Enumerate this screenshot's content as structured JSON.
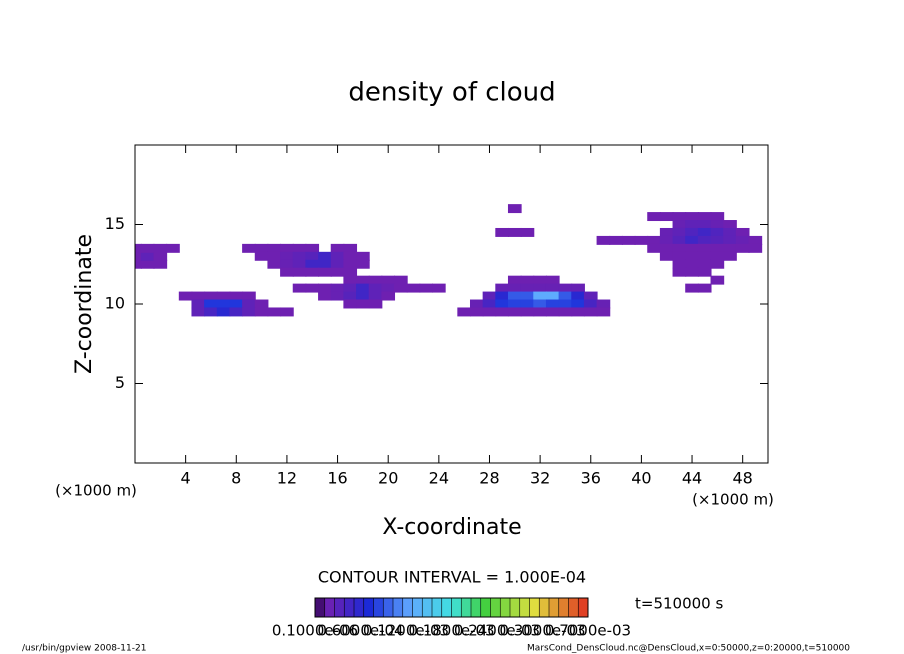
{
  "chart_data": {
    "type": "heatmap",
    "title": "density of cloud",
    "x_label": "X-coordinate",
    "y_label": "Z-coordinate",
    "x_unit": "(×1000 m)",
    "y_unit": "(×1000 m)",
    "xlim": [
      0,
      50
    ],
    "ylim": [
      0,
      20
    ],
    "xticks": [
      4,
      8,
      12,
      16,
      20,
      24,
      28,
      32,
      36,
      40,
      44,
      48
    ],
    "yticks": [
      5,
      10,
      15
    ],
    "clim": [
      0,
      0.0007
    ],
    "contour_interval": "CONTOUR INTERVAL = 1.000E-04",
    "time_label": "t=510000 s",
    "colorbar_labels": [
      "0.1000e-06",
      "0.6000e-04",
      "0.1200e-03",
      "0.1800e-03",
      "0.2400e-03",
      "0.3000e-03",
      "0.7000e-03"
    ],
    "footer_left": "/usr/bin/gpview  2008-11-21",
    "footer_right": "MarsCond_DensCloud.nc@DensCloud,x=0:50000,z=0:20000,t=510000",
    "cells": [
      [
        0,
        12.5,
        3e-05
      ],
      [
        1,
        12.5,
        3e-05
      ],
      [
        2,
        12.5,
        3e-05
      ],
      [
        0,
        13,
        3e-05
      ],
      [
        1,
        13,
        5e-05
      ],
      [
        2,
        13,
        3e-05
      ],
      [
        0,
        13.5,
        3e-05
      ],
      [
        1,
        13.5,
        3e-05
      ],
      [
        2,
        13.5,
        3e-05
      ],
      [
        3,
        13.5,
        3e-05
      ],
      [
        4,
        10.5,
        3e-05
      ],
      [
        5,
        10.5,
        3e-05
      ],
      [
        6,
        10.5,
        3e-05
      ],
      [
        7,
        10.5,
        3e-05
      ],
      [
        8,
        10.5,
        3e-05
      ],
      [
        9,
        10.5,
        3e-05
      ],
      [
        5,
        10,
        5e-05
      ],
      [
        6,
        10,
        0.00015
      ],
      [
        7,
        10,
        0.00015
      ],
      [
        8,
        10,
        0.00015
      ],
      [
        9,
        10,
        5e-05
      ],
      [
        10,
        10,
        3e-05
      ],
      [
        5,
        9.5,
        5e-05
      ],
      [
        6,
        9.5,
        8e-05
      ],
      [
        7,
        9.5,
        0.00012
      ],
      [
        8,
        9.5,
        8e-05
      ],
      [
        9,
        9.5,
        5e-05
      ],
      [
        10,
        9.5,
        3e-05
      ],
      [
        11,
        9.5,
        3e-05
      ],
      [
        12,
        9.5,
        3e-05
      ],
      [
        9,
        13.5,
        3e-05
      ],
      [
        10,
        13.5,
        3e-05
      ],
      [
        11,
        13.5,
        3e-05
      ],
      [
        12,
        13.5,
        3e-05
      ],
      [
        13,
        13.5,
        3e-05
      ],
      [
        14,
        13.5,
        3e-05
      ],
      [
        16,
        13.5,
        3e-05
      ],
      [
        17,
        13.5,
        3e-05
      ],
      [
        10,
        13,
        3e-05
      ],
      [
        11,
        13,
        3e-05
      ],
      [
        12,
        13,
        4e-05
      ],
      [
        13,
        13,
        5e-05
      ],
      [
        14,
        13,
        6e-05
      ],
      [
        15,
        13,
        9e-05
      ],
      [
        16,
        13,
        5e-05
      ],
      [
        17,
        13,
        3e-05
      ],
      [
        18,
        13,
        3e-05
      ],
      [
        11,
        12.5,
        3e-05
      ],
      [
        12,
        12.5,
        4e-05
      ],
      [
        13,
        12.5,
        5e-05
      ],
      [
        14,
        12.5,
        9e-05
      ],
      [
        15,
        12.5,
        9e-05
      ],
      [
        16,
        12.5,
        5e-05
      ],
      [
        17,
        12.5,
        3e-05
      ],
      [
        18,
        12.5,
        3e-05
      ],
      [
        12,
        12,
        3e-05
      ],
      [
        13,
        12,
        3e-05
      ],
      [
        14,
        12,
        3e-05
      ],
      [
        15,
        12,
        3e-05
      ],
      [
        16,
        12,
        3e-05
      ],
      [
        17,
        12,
        3e-05
      ],
      [
        17,
        11.5,
        3e-05
      ],
      [
        18,
        11.5,
        3e-05
      ],
      [
        19,
        11.5,
        3e-05
      ],
      [
        20,
        11.5,
        3e-05
      ],
      [
        21,
        11.5,
        3e-05
      ],
      [
        13,
        11,
        3e-05
      ],
      [
        14,
        11,
        3e-05
      ],
      [
        15,
        11,
        3e-05
      ],
      [
        16,
        11,
        4e-05
      ],
      [
        17,
        11,
        5e-05
      ],
      [
        18,
        11,
        9e-05
      ],
      [
        19,
        11,
        5e-05
      ],
      [
        20,
        11,
        4e-05
      ],
      [
        21,
        11,
        3e-05
      ],
      [
        22,
        11,
        3e-05
      ],
      [
        23,
        11,
        3e-05
      ],
      [
        24,
        11,
        3e-05
      ],
      [
        15,
        10.5,
        3e-05
      ],
      [
        16,
        10.5,
        4e-05
      ],
      [
        17,
        10.5,
        6e-05
      ],
      [
        18,
        10.5,
        9e-05
      ],
      [
        19,
        10.5,
        5e-05
      ],
      [
        20,
        10.5,
        3e-05
      ],
      [
        17,
        10,
        3e-05
      ],
      [
        18,
        10,
        3e-05
      ],
      [
        19,
        10,
        3e-05
      ],
      [
        30,
        11.5,
        3e-05
      ],
      [
        31,
        11.5,
        3e-05
      ],
      [
        32,
        11.5,
        3e-05
      ],
      [
        33,
        11.5,
        3e-05
      ],
      [
        29,
        11,
        4e-05
      ],
      [
        30,
        11,
        4e-05
      ],
      [
        31,
        11,
        4e-05
      ],
      [
        32,
        11,
        4e-05
      ],
      [
        33,
        11,
        4e-05
      ],
      [
        34,
        11,
        4e-05
      ],
      [
        35,
        11,
        4e-05
      ],
      [
        28,
        10.5,
        5e-05
      ],
      [
        29,
        10.5,
        0.00012
      ],
      [
        30,
        10.5,
        0.00018
      ],
      [
        31,
        10.5,
        0.00018
      ],
      [
        32,
        10.5,
        0.00025
      ],
      [
        33,
        10.5,
        0.00025
      ],
      [
        34,
        10.5,
        0.00018
      ],
      [
        35,
        10.5,
        0.00012
      ],
      [
        36,
        10.5,
        5e-05
      ],
      [
        27,
        10,
        4e-05
      ],
      [
        28,
        10,
        8e-05
      ],
      [
        29,
        10,
        0.00015
      ],
      [
        30,
        10,
        0.00016
      ],
      [
        31,
        10,
        0.00016
      ],
      [
        32,
        10,
        0.00018
      ],
      [
        33,
        10,
        0.00016
      ],
      [
        34,
        10,
        0.00016
      ],
      [
        35,
        10,
        0.00015
      ],
      [
        36,
        10,
        8e-05
      ],
      [
        37,
        10,
        4e-05
      ],
      [
        26,
        9.5,
        3e-05
      ],
      [
        27,
        9.5,
        3e-05
      ],
      [
        28,
        9.5,
        3e-05
      ],
      [
        29,
        9.5,
        3e-05
      ],
      [
        30,
        9.5,
        3e-05
      ],
      [
        31,
        9.5,
        3e-05
      ],
      [
        32,
        9.5,
        3e-05
      ],
      [
        33,
        9.5,
        3e-05
      ],
      [
        34,
        9.5,
        3e-05
      ],
      [
        35,
        9.5,
        3e-05
      ],
      [
        36,
        9.5,
        3e-05
      ],
      [
        37,
        9.5,
        3e-05
      ],
      [
        29,
        14.5,
        3e-05
      ],
      [
        30,
        14.5,
        3e-05
      ],
      [
        31,
        14.5,
        3e-05
      ],
      [
        30,
        16,
        3e-05
      ],
      [
        41,
        15.5,
        3e-05
      ],
      [
        42,
        15.5,
        3e-05
      ],
      [
        43,
        15.5,
        3e-05
      ],
      [
        44,
        15.5,
        3e-05
      ],
      [
        45,
        15.5,
        3e-05
      ],
      [
        46,
        15.5,
        3e-05
      ],
      [
        43,
        15,
        4e-05
      ],
      [
        44,
        15,
        5e-05
      ],
      [
        45,
        15,
        5e-05
      ],
      [
        46,
        15,
        4e-05
      ],
      [
        47,
        15,
        3e-05
      ],
      [
        42,
        14.5,
        4e-05
      ],
      [
        43,
        14.5,
        5e-05
      ],
      [
        44,
        14.5,
        7e-05
      ],
      [
        45,
        14.5,
        9e-05
      ],
      [
        46,
        14.5,
        7e-05
      ],
      [
        47,
        14.5,
        5e-05
      ],
      [
        48,
        14.5,
        3e-05
      ],
      [
        37,
        14,
        3e-05
      ],
      [
        38,
        14,
        3e-05
      ],
      [
        39,
        14,
        3e-05
      ],
      [
        40,
        14,
        3e-05
      ],
      [
        41,
        14,
        3e-05
      ],
      [
        42,
        14,
        4e-05
      ],
      [
        43,
        14,
        6e-05
      ],
      [
        44,
        14,
        9e-05
      ],
      [
        45,
        14,
        7e-05
      ],
      [
        46,
        14,
        6e-05
      ],
      [
        47,
        14,
        5e-05
      ],
      [
        48,
        14,
        4e-05
      ],
      [
        49,
        14,
        3e-05
      ],
      [
        41,
        13.5,
        3e-05
      ],
      [
        42,
        13.5,
        3e-05
      ],
      [
        43,
        13.5,
        3e-05
      ],
      [
        44,
        13.5,
        3e-05
      ],
      [
        45,
        13.5,
        3e-05
      ],
      [
        46,
        13.5,
        3e-05
      ],
      [
        47,
        13.5,
        3e-05
      ],
      [
        48,
        13.5,
        3e-05
      ],
      [
        49,
        13.5,
        3e-05
      ],
      [
        42,
        13,
        3e-05
      ],
      [
        43,
        13,
        3e-05
      ],
      [
        44,
        13,
        3e-05
      ],
      [
        45,
        13,
        3e-05
      ],
      [
        46,
        13,
        3e-05
      ],
      [
        47,
        13,
        3e-05
      ],
      [
        43,
        12.5,
        3e-05
      ],
      [
        44,
        12.5,
        3e-05
      ],
      [
        45,
        12.5,
        3e-05
      ],
      [
        46,
        12.5,
        3e-05
      ],
      [
        43,
        12,
        3e-05
      ],
      [
        44,
        12,
        3e-05
      ],
      [
        45,
        12,
        3e-05
      ],
      [
        44,
        11,
        3e-05
      ],
      [
        45,
        11,
        3e-05
      ],
      [
        46,
        11.5,
        3e-05
      ]
    ]
  }
}
